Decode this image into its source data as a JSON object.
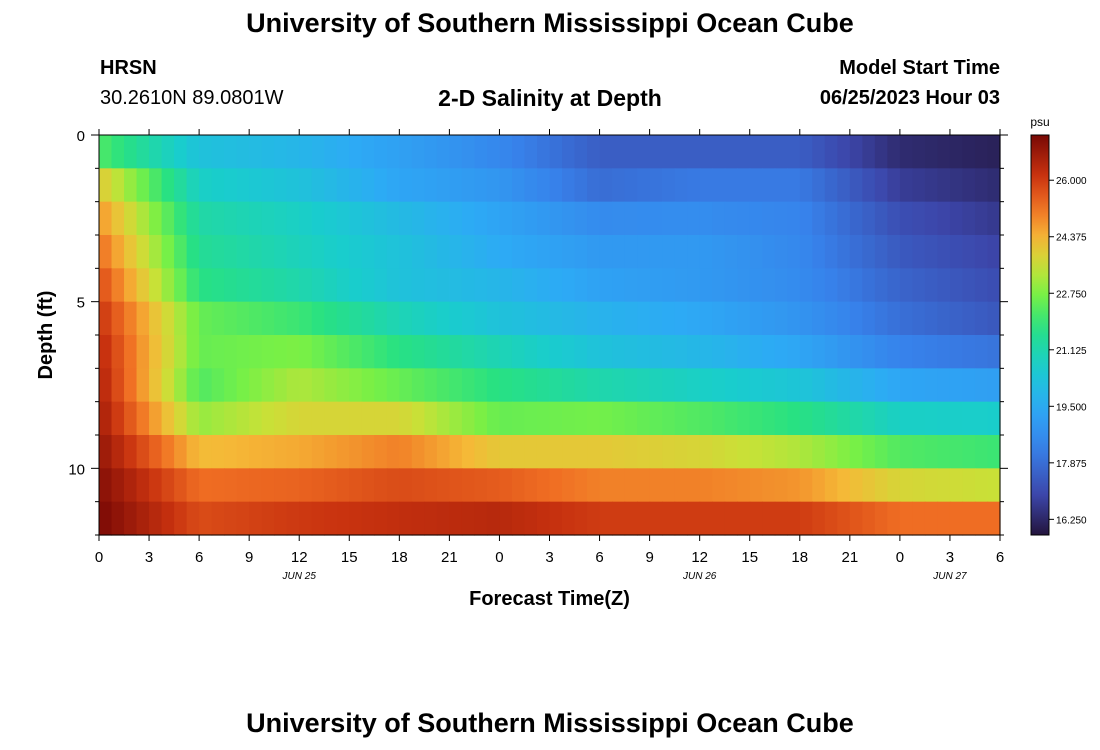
{
  "header": {
    "title": "University of Southern Mississippi Ocean Cube",
    "footer_title": "University of Southern Mississippi Ocean Cube",
    "station": "HRSN",
    "coords": "30.2610N  89.0801W",
    "chart_title": "2-D Salinity at Depth",
    "model_label": "Model Start Time",
    "model_time": "06/25/2023 Hour 03"
  },
  "chart_data": {
    "type": "heatmap",
    "title": "2-D Salinity at Depth",
    "xlabel": "Forecast Time(Z)",
    "ylabel": "Depth (ft)",
    "xlim": [
      0,
      54
    ],
    "ylim": [
      0,
      12
    ],
    "x_ticks": [
      0,
      3,
      6,
      9,
      12,
      15,
      18,
      21,
      24,
      27,
      30,
      33,
      36,
      39,
      42,
      45,
      48,
      51,
      54
    ],
    "x_tick_labels": [
      "0",
      "3",
      "6",
      "9",
      "12",
      "15",
      "18",
      "21",
      "0",
      "3",
      "6",
      "9",
      "12",
      "15",
      "18",
      "21",
      "0",
      "3",
      "6"
    ],
    "date_labels": [
      {
        "x": 12,
        "label": "JUN 25"
      },
      {
        "x": 36,
        "label": "JUN 26"
      },
      {
        "x": 51,
        "label": "JUN 27"
      }
    ],
    "y_ticks": [
      0,
      5,
      10
    ],
    "y_tick_labels": [
      "0",
      "5",
      "10"
    ],
    "units": "psu",
    "colorbar": {
      "min": 15.8,
      "max": 27.3,
      "ticks": [
        16.25,
        17.875,
        19.5,
        21.125,
        22.75,
        24.375,
        26.0
      ],
      "tick_labels": [
        "16.250",
        "17.875",
        "19.500",
        "21.125",
        "22.750",
        "24.375",
        "26.000"
      ]
    },
    "time_hours": [
      0,
      6,
      12,
      18,
      24,
      30,
      36,
      42,
      48,
      54
    ],
    "depth_ft": [
      0,
      1,
      2,
      3,
      4,
      5,
      6,
      7,
      8,
      9,
      10,
      11,
      12
    ],
    "salinity": [
      [
        21.0,
        20.0,
        19.7,
        19.2,
        18.5,
        17.5,
        17.0,
        17.0,
        16.2,
        16.0
      ],
      [
        23.5,
        20.5,
        20.0,
        19.2,
        18.5,
        17.5,
        18.0,
        18.0,
        16.5,
        16.2
      ],
      [
        24.5,
        21.0,
        20.5,
        19.5,
        19.3,
        18.2,
        18.3,
        18.3,
        17.0,
        16.5
      ],
      [
        25.0,
        21.5,
        21.0,
        20.5,
        19.3,
        19.0,
        19.0,
        18.5,
        17.3,
        16.8
      ],
      [
        25.5,
        21.5,
        20.8,
        20.0,
        19.7,
        19.0,
        19.0,
        18.5,
        17.5,
        17.0
      ],
      [
        26.0,
        22.0,
        21.5,
        20.5,
        20.0,
        19.5,
        19.0,
        18.7,
        17.8,
        17.2
      ],
      [
        26.3,
        23.0,
        22.5,
        21.5,
        20.5,
        20.0,
        19.8,
        19.0,
        18.0,
        17.5
      ],
      [
        26.5,
        22.0,
        23.0,
        22.0,
        21.5,
        20.5,
        20.0,
        19.7,
        18.7,
        18.5
      ],
      [
        26.6,
        22.5,
        23.5,
        23.0,
        22.0,
        21.8,
        21.5,
        21.0,
        20.0,
        19.8
      ],
      [
        26.8,
        23.5,
        24.0,
        24.5,
        23.0,
        23.5,
        23.0,
        22.5,
        21.5,
        21.5
      ],
      [
        27.0,
        25.0,
        25.0,
        25.5,
        25.0,
        24.5,
        24.5,
        24.0,
        23.0,
        22.5
      ],
      [
        27.2,
        25.5,
        25.8,
        26.0,
        26.0,
        25.5,
        25.5,
        25.5,
        24.5,
        24.5
      ],
      [
        27.3,
        26.0,
        26.3,
        26.5,
        26.8,
        26.5,
        26.5,
        26.5,
        26.0,
        26.0
      ]
    ]
  }
}
